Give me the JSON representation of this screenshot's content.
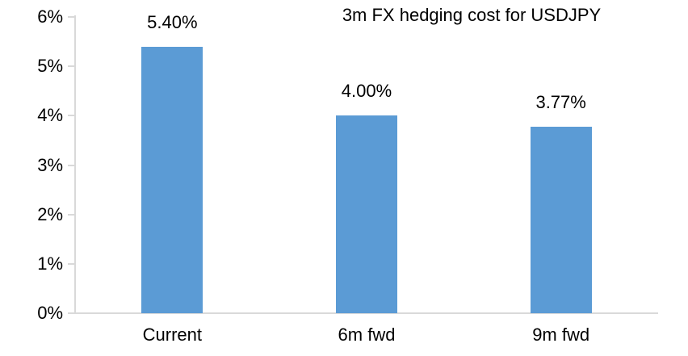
{
  "chart_data": {
    "type": "bar",
    "title": "3m FX hedging cost for USDJPY",
    "categories": [
      "Current",
      "6m fwd",
      "9m fwd"
    ],
    "values": [
      5.4,
      4.0,
      3.77
    ],
    "value_labels": [
      "5.40%",
      "4.00%",
      "3.77%"
    ],
    "y_ticks": [
      {
        "value": 0,
        "label": "0%"
      },
      {
        "value": 1,
        "label": "1%"
      },
      {
        "value": 2,
        "label": "2%"
      },
      {
        "value": 3,
        "label": "3%"
      },
      {
        "value": 4,
        "label": "4%"
      },
      {
        "value": 5,
        "label": "5%"
      },
      {
        "value": 6,
        "label": "6%"
      }
    ],
    "ylim": [
      0,
      6
    ],
    "xlabel": "",
    "ylabel": "",
    "grid": false,
    "legend": "none",
    "colors": {
      "bar": "#5B9BD5",
      "axis": "#D9D9D9",
      "text": "#000000"
    }
  }
}
